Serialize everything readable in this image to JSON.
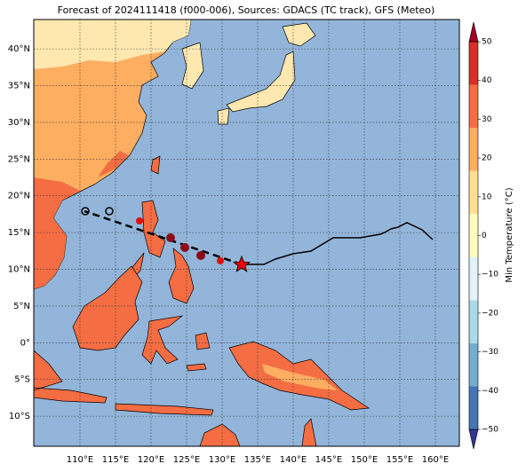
{
  "title": "Forecast of 2024111418 (f000-006), Sources: GDACS (TC track), GFS (Meteo)",
  "map": {
    "lon_ticks": [
      {
        "value": 110,
        "label": "110°E"
      },
      {
        "value": 115,
        "label": "115°E"
      },
      {
        "value": 120,
        "label": "120°E"
      },
      {
        "value": 125,
        "label": "125°E"
      },
      {
        "value": 130,
        "label": "130°E"
      },
      {
        "value": 135,
        "label": "135°E"
      },
      {
        "value": 140,
        "label": "140°E"
      },
      {
        "value": 145,
        "label": "145°E"
      },
      {
        "value": 150,
        "label": "150°E"
      },
      {
        "value": 155,
        "label": "155°E"
      },
      {
        "value": 160,
        "label": "160°E"
      }
    ],
    "lat_ticks": [
      {
        "value": 40,
        "label": "40°N"
      },
      {
        "value": 35,
        "label": "35°N"
      },
      {
        "value": 30,
        "label": "30°N"
      },
      {
        "value": 25,
        "label": "25°N"
      },
      {
        "value": 20,
        "label": "20°N"
      },
      {
        "value": 15,
        "label": "15°N"
      },
      {
        "value": 10,
        "label": "10°N"
      },
      {
        "value": 5,
        "label": "5°N"
      },
      {
        "value": 0,
        "label": "0°"
      },
      {
        "value": -5,
        "label": "5°S"
      },
      {
        "value": -10,
        "label": "10°S"
      }
    ]
  },
  "colorbar": {
    "label": "Min Temperature (°C)",
    "ticks": [
      50,
      40,
      30,
      20,
      10,
      0,
      {
        "value": -10,
        "label": "−10"
      },
      {
        "value": -20,
        "label": "−20"
      },
      {
        "value": -30,
        "label": "−30"
      },
      {
        "value": -40,
        "label": "−40"
      },
      {
        "value": -50,
        "label": "−50"
      }
    ],
    "colors": [
      "#313695",
      "#4575b4",
      "#74add1",
      "#abd9e9",
      "#e0f3f8",
      "#ffffbf",
      "#fee090",
      "#fdae61",
      "#f46d43",
      "#d73027",
      "#a50026"
    ]
  }
}
